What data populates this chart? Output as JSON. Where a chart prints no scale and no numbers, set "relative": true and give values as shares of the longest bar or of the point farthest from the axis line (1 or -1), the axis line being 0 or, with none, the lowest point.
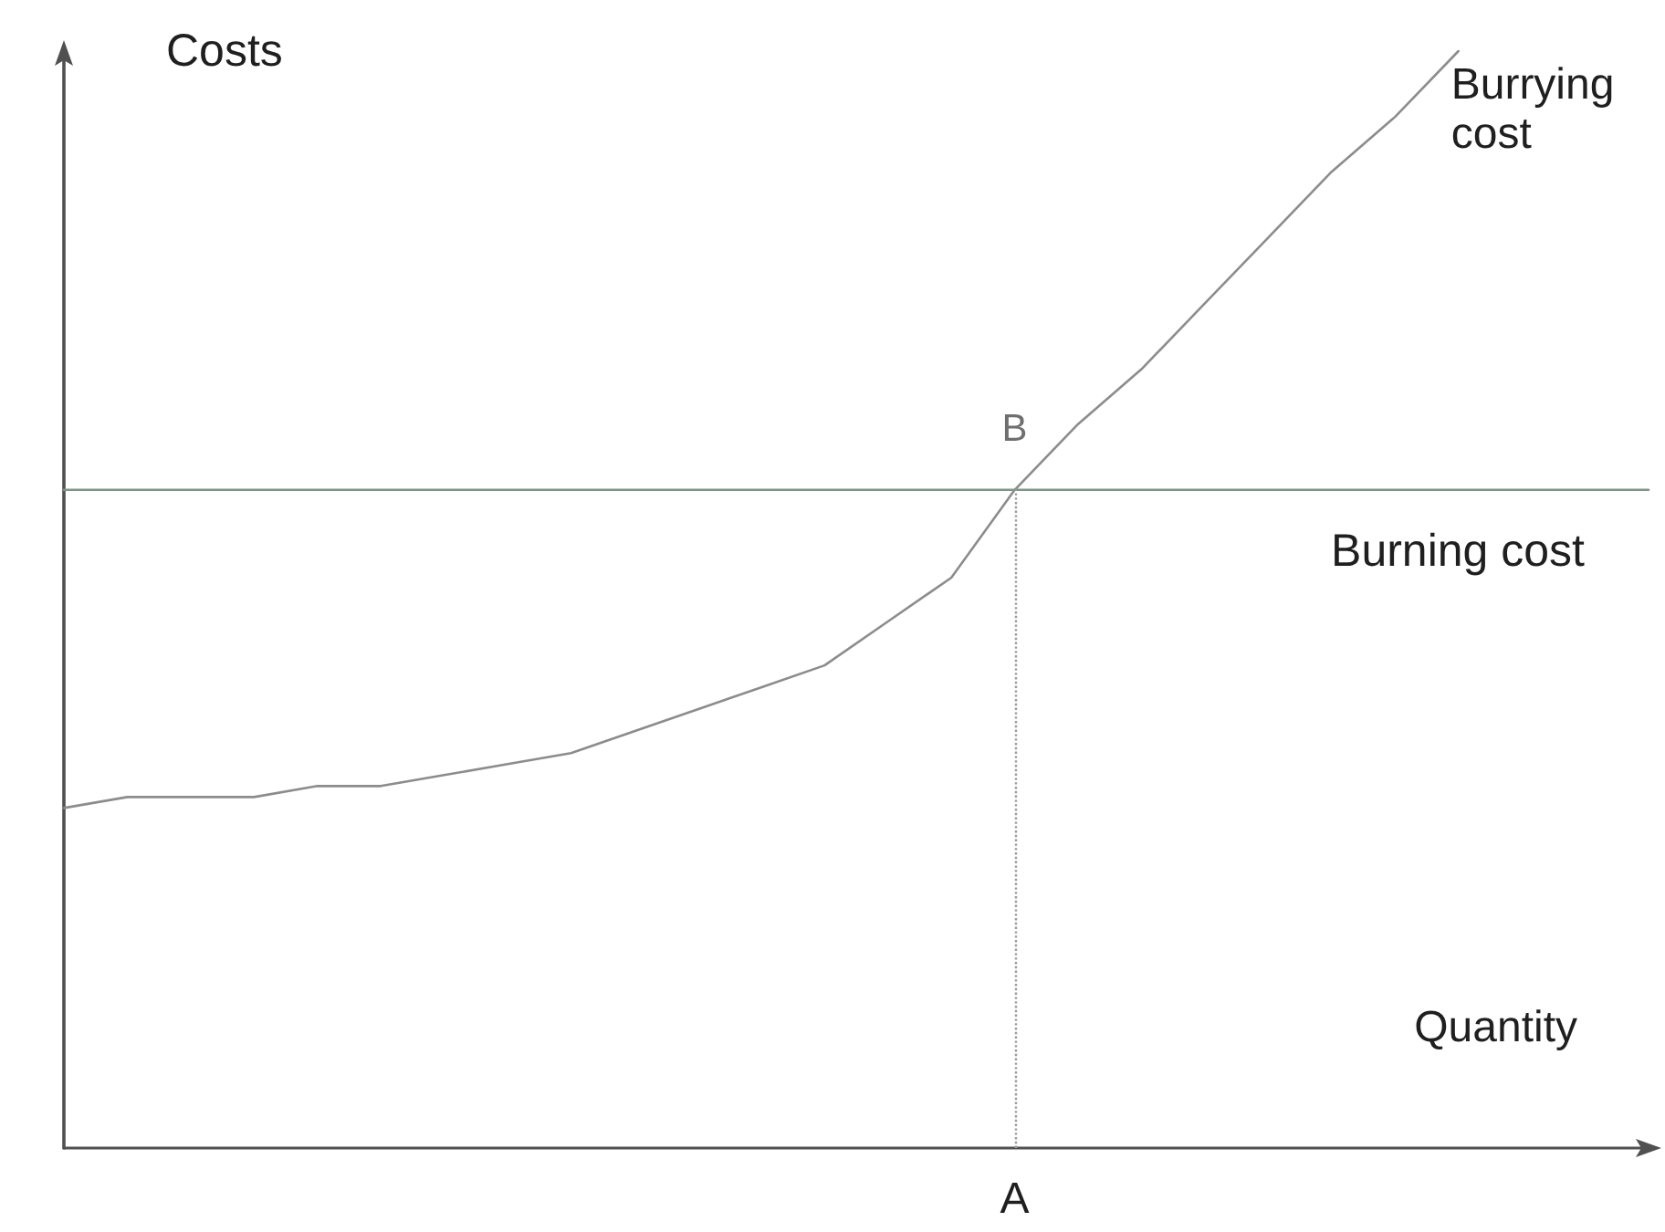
{
  "chart_data": {
    "type": "line",
    "xlabel": "Quantity",
    "ylabel": "Costs",
    "relative": true,
    "categories": [
      null,
      null,
      null,
      null,
      null,
      null,
      null,
      null,
      null,
      null,
      null,
      null,
      null,
      null,
      null,
      null,
      null,
      null,
      null,
      null,
      null,
      null,
      null,
      null,
      null,
      null
    ],
    "series": [
      {
        "name": "Burrying cost",
        "color": "#8c8c8c",
        "values": [
          0.31,
          0.32,
          0.32,
          0.32,
          0.33,
          0.33,
          0.34,
          0.35,
          0.36,
          0.38,
          0.4,
          0.42,
          0.44,
          0.48,
          0.52,
          0.6,
          0.66,
          0.71,
          0.77,
          0.83,
          0.89,
          0.94,
          1,
          null,
          null,
          null
        ]
      },
      {
        "name": "Burning cost",
        "color": "#7f9488",
        "values": [
          0.6,
          0.6,
          0.6,
          0.6,
          0.6,
          0.6,
          0.6,
          0.6,
          0.6,
          0.6,
          0.6,
          0.6,
          0.6,
          0.6,
          0.6,
          0.6,
          0.6,
          0.6,
          0.6,
          0.6,
          0.6,
          0.6,
          0.6,
          0.6,
          0.6,
          0.6
        ]
      }
    ],
    "annotations": [
      {
        "text": "B",
        "y": 0.6
      },
      "A"
    ],
    "legend": false,
    "grid": false,
    "marker": "none",
    "line_style": "solid"
  }
}
